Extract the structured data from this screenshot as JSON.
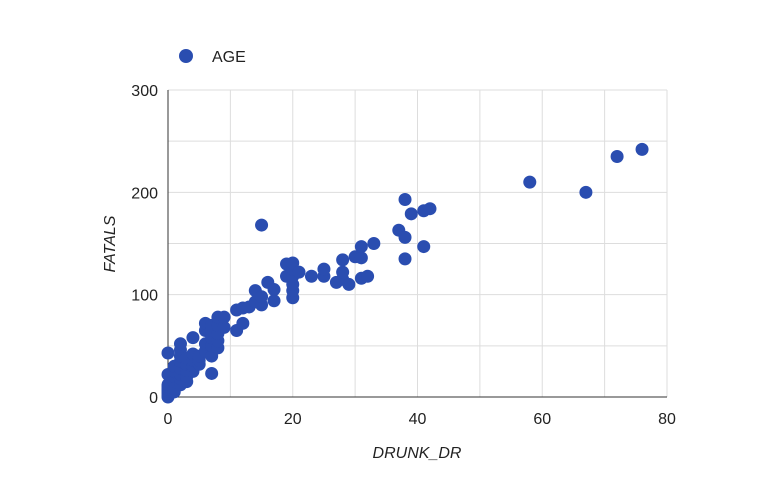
{
  "chart_data": {
    "type": "scatter",
    "xlabel": "DRUNK_DR",
    "ylabel": "FATALS",
    "xlim": [
      0,
      80
    ],
    "ylim": [
      0,
      300
    ],
    "x_ticks": [
      "0",
      "20",
      "40",
      "60",
      "80"
    ],
    "y_ticks": [
      "0",
      "100",
      "200",
      "300"
    ],
    "grid": true,
    "legend": "top-left",
    "color": "#2a4db0",
    "series": [
      {
        "name": "AGE",
        "points": [
          [
            0,
            0
          ],
          [
            0,
            2
          ],
          [
            0,
            4
          ],
          [
            0,
            6
          ],
          [
            0,
            8
          ],
          [
            0,
            10
          ],
          [
            0,
            12
          ],
          [
            0,
            22
          ],
          [
            0,
            43
          ],
          [
            1,
            5
          ],
          [
            1,
            8
          ],
          [
            1,
            15
          ],
          [
            1,
            20
          ],
          [
            1,
            25
          ],
          [
            1,
            30
          ],
          [
            2,
            12
          ],
          [
            2,
            18
          ],
          [
            2,
            22
          ],
          [
            2,
            28
          ],
          [
            2,
            35
          ],
          [
            2,
            40
          ],
          [
            2,
            46
          ],
          [
            2,
            52
          ],
          [
            3,
            15
          ],
          [
            3,
            20
          ],
          [
            3,
            26
          ],
          [
            3,
            32
          ],
          [
            3,
            38
          ],
          [
            4,
            25
          ],
          [
            4,
            30
          ],
          [
            4,
            36
          ],
          [
            4,
            42
          ],
          [
            4,
            58
          ],
          [
            5,
            32
          ],
          [
            5,
            36
          ],
          [
            5,
            40
          ],
          [
            6,
            45
          ],
          [
            6,
            52
          ],
          [
            6,
            65
          ],
          [
            6,
            72
          ],
          [
            7,
            23
          ],
          [
            7,
            40
          ],
          [
            7,
            50
          ],
          [
            7,
            58
          ],
          [
            7,
            65
          ],
          [
            7,
            70
          ],
          [
            8,
            48
          ],
          [
            8,
            55
          ],
          [
            8,
            62
          ],
          [
            8,
            70
          ],
          [
            8,
            78
          ],
          [
            9,
            68
          ],
          [
            9,
            78
          ],
          [
            11,
            65
          ],
          [
            11,
            85
          ],
          [
            12,
            72
          ],
          [
            12,
            87
          ],
          [
            13,
            88
          ],
          [
            14,
            93
          ],
          [
            14,
            104
          ],
          [
            15,
            90
          ],
          [
            15,
            98
          ],
          [
            15,
            168
          ],
          [
            16,
            112
          ],
          [
            17,
            94
          ],
          [
            17,
            105
          ],
          [
            19,
            118
          ],
          [
            19,
            130
          ],
          [
            20,
            97
          ],
          [
            20,
            104
          ],
          [
            20,
            110
          ],
          [
            20,
            118
          ],
          [
            20,
            125
          ],
          [
            20,
            131
          ],
          [
            21,
            122
          ],
          [
            23,
            118
          ],
          [
            25,
            118
          ],
          [
            25,
            125
          ],
          [
            27,
            112
          ],
          [
            28,
            115
          ],
          [
            28,
            122
          ],
          [
            28,
            134
          ],
          [
            29,
            110
          ],
          [
            30,
            137
          ],
          [
            31,
            116
          ],
          [
            31,
            136
          ],
          [
            31,
            147
          ],
          [
            32,
            118
          ],
          [
            33,
            150
          ],
          [
            37,
            163
          ],
          [
            38,
            135
          ],
          [
            38,
            156
          ],
          [
            38,
            193
          ],
          [
            39,
            179
          ],
          [
            41,
            147
          ],
          [
            41,
            182
          ],
          [
            42,
            184
          ],
          [
            58,
            210
          ],
          [
            67,
            200
          ],
          [
            72,
            235
          ],
          [
            76,
            242
          ]
        ]
      }
    ]
  }
}
